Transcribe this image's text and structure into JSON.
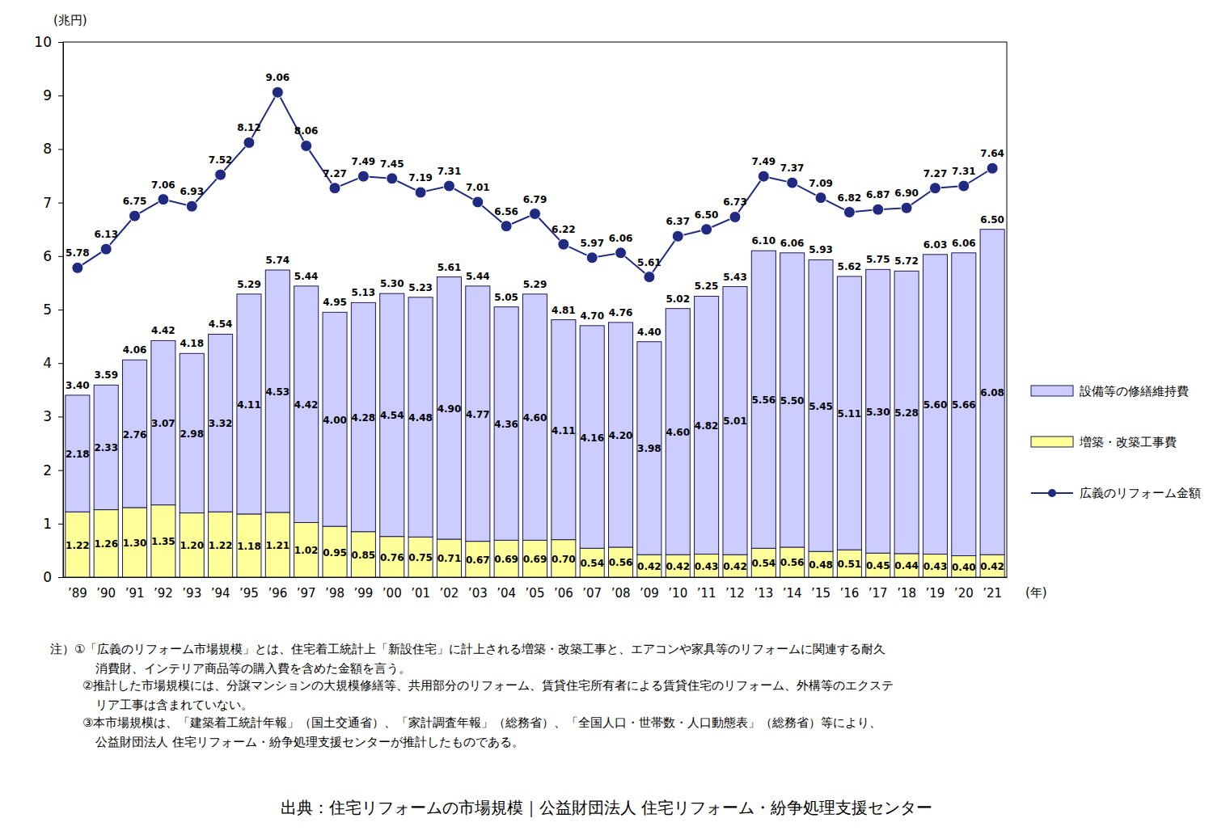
{
  "chart_data": {
    "type": "bar",
    "y_label": "(兆円)",
    "x_label": "(年)",
    "categories": [
      "’89",
      "’90",
      "’91",
      "’92",
      "’93",
      "’94",
      "’95",
      "’96",
      "’97",
      "’98",
      "’99",
      "’00",
      "’01",
      "’02",
      "’03",
      "’04",
      "’05",
      "’06",
      "’07",
      "’08",
      "’09",
      "’10",
      "’11",
      "’12",
      "’13",
      "’14",
      "’15",
      "’16",
      "’17",
      "’18",
      "’19",
      "’20",
      "’21"
    ],
    "series": [
      {
        "name": "増築・改築工事費",
        "type": "bar",
        "color": "#ffff99",
        "values": [
          1.22,
          1.26,
          1.3,
          1.35,
          1.2,
          1.22,
          1.18,
          1.21,
          1.02,
          0.95,
          0.85,
          0.76,
          0.75,
          0.71,
          0.67,
          0.69,
          0.69,
          0.7,
          0.54,
          0.56,
          0.42,
          0.42,
          0.43,
          0.42,
          0.54,
          0.56,
          0.48,
          0.51,
          0.45,
          0.44,
          0.43,
          0.4,
          0.42
        ],
        "value_labels": [
          "1.22",
          "1.26",
          "1.30",
          "1.35",
          "1.20",
          "1.22",
          "1.18",
          "1.21",
          "1.02",
          "0.95",
          "0.85",
          "0.76",
          "0.75",
          "0.71",
          "0.67",
          "0.69",
          "0.69",
          "0.70",
          "0.54",
          "0.56",
          "0.42",
          "0.42",
          "0.43",
          "0.42",
          "0.54",
          "0.56",
          "0.48",
          "0.51",
          "0.45",
          "0.44",
          "0.43",
          "0.40",
          "0.42"
        ]
      },
      {
        "name": "設備等の修繕維持費",
        "type": "bar",
        "color": "#ccccff",
        "values": [
          2.18,
          2.33,
          2.76,
          3.07,
          2.98,
          3.32,
          4.11,
          4.53,
          4.42,
          4.0,
          4.28,
          4.54,
          4.48,
          4.9,
          4.77,
          4.36,
          4.6,
          4.11,
          4.16,
          4.2,
          3.98,
          4.6,
          4.82,
          5.01,
          5.56,
          5.5,
          5.45,
          5.11,
          5.3,
          5.28,
          5.6,
          5.66,
          6.08
        ],
        "value_labels": [
          "2.18",
          "2.33",
          "2.76",
          "3.07",
          "2.98",
          "3.32",
          "4.11",
          "4.53",
          "4.42",
          "4.00",
          "4.28",
          "4.54",
          "4.48",
          "4.90",
          "4.77",
          "4.36",
          "4.60",
          "4.11",
          "4.16",
          "4.20",
          "3.98",
          "4.60",
          "4.82",
          "5.01",
          "5.56",
          "5.50",
          "5.45",
          "5.11",
          "5.30",
          "5.28",
          "5.60",
          "5.66",
          "6.08"
        ]
      },
      {
        "name": "広義のリフォーム金額",
        "type": "line",
        "color": "#1f2a80",
        "marker": "circle",
        "line_style": "solid",
        "values": [
          5.78,
          6.13,
          6.75,
          7.06,
          6.93,
          7.52,
          8.12,
          9.06,
          8.06,
          7.27,
          7.49,
          7.45,
          7.19,
          7.31,
          7.01,
          6.56,
          6.79,
          6.22,
          5.97,
          6.06,
          5.61,
          6.37,
          6.5,
          6.73,
          7.49,
          7.37,
          7.09,
          6.82,
          6.87,
          6.9,
          7.27,
          7.31,
          7.64
        ],
        "value_labels": [
          "5.78",
          "6.13",
          "6.75",
          "7.06",
          "6.93",
          "7.52",
          "8.12",
          "9.06",
          "8.06",
          "7.27",
          "7.49",
          "7.45",
          "7.19",
          "7.31",
          "7.01",
          "6.56",
          "6.79",
          "6.22",
          "5.97",
          "6.06",
          "5.61",
          "6.37",
          "6.50",
          "6.73",
          "7.49",
          "7.37",
          "7.09",
          "6.82",
          "6.87",
          "6.90",
          "7.27",
          "7.31",
          "7.64"
        ]
      }
    ],
    "totals": {
      "values": [
        3.4,
        3.59,
        4.06,
        4.42,
        4.18,
        4.54,
        5.29,
        5.74,
        5.44,
        4.95,
        5.13,
        5.3,
        5.23,
        5.61,
        5.44,
        5.05,
        5.29,
        4.81,
        4.7,
        4.76,
        4.4,
        5.02,
        5.25,
        5.43,
        6.1,
        6.06,
        5.93,
        5.62,
        5.75,
        5.72,
        6.03,
        6.06,
        6.5
      ],
      "value_labels": [
        "3.40",
        "3.59",
        "4.06",
        "4.42",
        "4.18",
        "4.54",
        "5.29",
        "5.74",
        "5.44",
        "4.95",
        "5.13",
        "5.30",
        "5.23",
        "5.61",
        "5.44",
        "5.05",
        "5.29",
        "4.81",
        "4.70",
        "4.76",
        "4.40",
        "5.02",
        "5.25",
        "5.43",
        "6.10",
        "6.06",
        "5.93",
        "5.62",
        "5.75",
        "5.72",
        "6.03",
        "6.06",
        "6.50"
      ]
    },
    "ylim": [
      0,
      10
    ],
    "yticks": [
      0,
      1,
      2,
      3,
      4,
      5,
      6,
      7,
      8,
      9,
      10
    ],
    "stacked": true,
    "data_labels": true,
    "grid": false,
    "legend": "right",
    "notes": [
      "注）①「広義のリフォーム市場規模」とは、住宅着工統計上「新設住宅」に計上される増築・改築工事と、エアコンや家具等のリフォームに関連する耐久",
      "消費財、インテリア商品等の購入費を含めた金額を言う。",
      "②推計した市場規模には、分譲マンションの大規模修繕等、共用部分のリフォーム、賃貸住宅所有者による賃貸住宅のリフォーム、外構等のエクステ",
      "リア工事は含まれていない。",
      "③本市場規模は、「建築着工統計年報」（国土交通省）、「家計調査年報」（総務省）、「全国人口・世帯数・人口動態表」（総務省）等により、",
      "公益財団法人 住宅リフォーム・紛争処理支援センターが推計したものである。"
    ],
    "source": "出典：住宅リフォームの市場規模｜公益財団法人 住宅リフォーム・紛争処理支援センター"
  }
}
